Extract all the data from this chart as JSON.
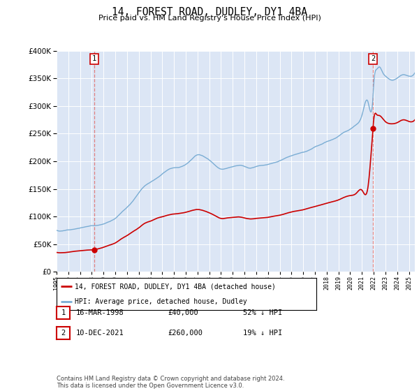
{
  "title": "14, FOREST ROAD, DUDLEY, DY1 4BA",
  "subtitle": "Price paid vs. HM Land Registry's House Price Index (HPI)",
  "bg_color": "#dce6f5",
  "ylim": [
    0,
    400000
  ],
  "yticks": [
    0,
    50000,
    100000,
    150000,
    200000,
    250000,
    300000,
    350000,
    400000
  ],
  "xlim": [
    1995,
    2025.5
  ],
  "sale1": {
    "date_num": 1998.21,
    "price": 40000
  },
  "sale2": {
    "date_num": 2021.94,
    "price": 260000
  },
  "legend_entries": [
    "14, FOREST ROAD, DUDLEY, DY1 4BA (detached house)",
    "HPI: Average price, detached house, Dudley"
  ],
  "table_rows": [
    {
      "num": "1",
      "date": "16-MAR-1998",
      "price": "£40,000",
      "hpi": "52% ↓ HPI"
    },
    {
      "num": "2",
      "date": "10-DEC-2021",
      "price": "£260,000",
      "hpi": "19% ↓ HPI"
    }
  ],
  "footer": "Contains HM Land Registry data © Crown copyright and database right 2024.\nThis data is licensed under the Open Government Licence v3.0.",
  "red_color": "#cc0000",
  "blue_color": "#7aadd4",
  "dashed_color": "#e08080"
}
